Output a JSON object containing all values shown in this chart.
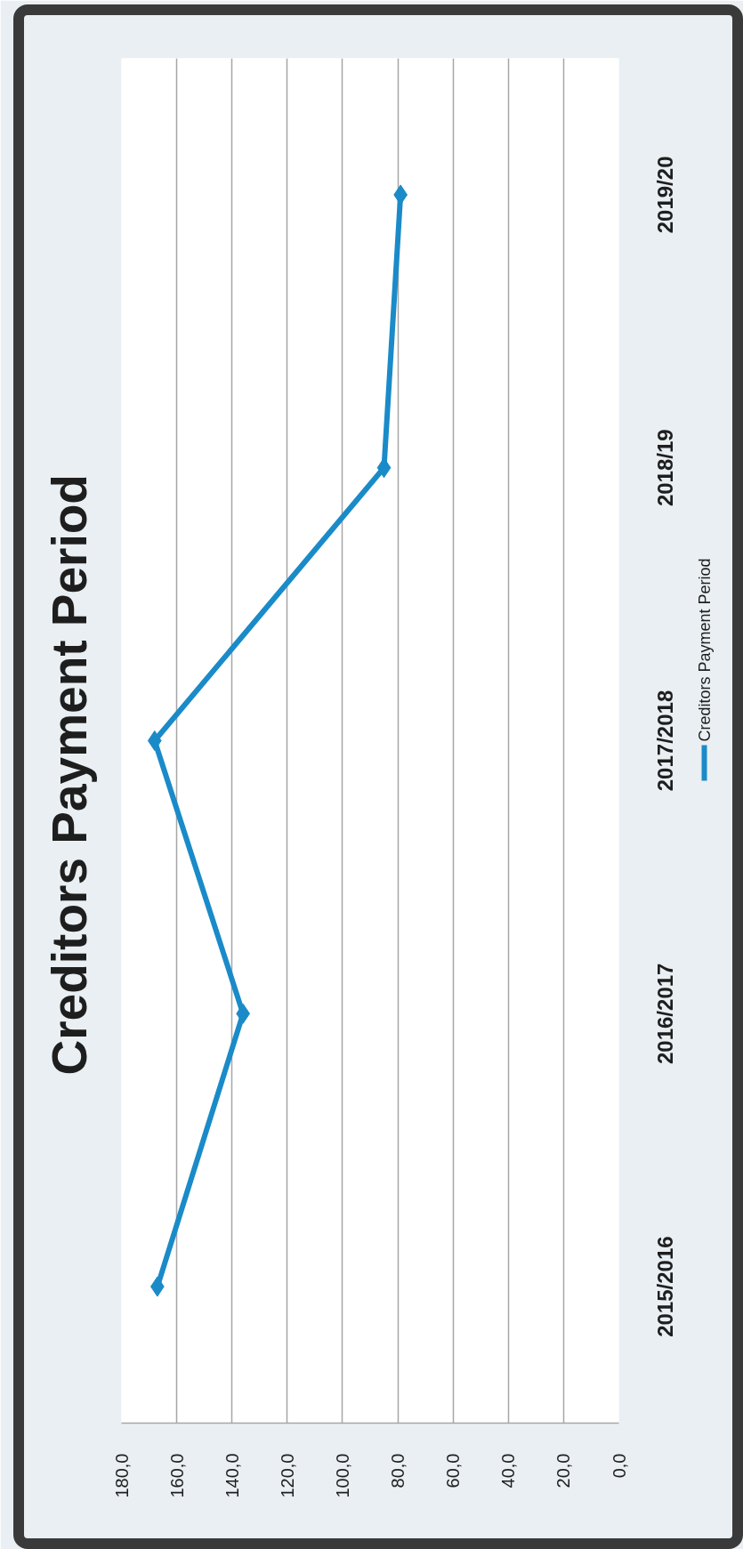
{
  "chart_data": {
    "type": "line",
    "orientation": "horizontal",
    "title": "Creditors Payment Period",
    "categories": [
      "2019/20",
      "2018/19",
      "2017/2018",
      "2016/2017",
      "2015/2016"
    ],
    "series": [
      {
        "name": "Creditors Payment Period",
        "color": "#1a8bc8",
        "values": [
          79,
          85,
          168,
          136,
          167
        ]
      }
    ],
    "xlim": [
      180,
      0
    ],
    "xticks": [
      {
        "value": 180,
        "label": "180,0"
      },
      {
        "value": 160,
        "label": "160,0"
      },
      {
        "value": 140,
        "label": "140,0"
      },
      {
        "value": 120,
        "label": "120,0"
      },
      {
        "value": 100,
        "label": "100,0"
      },
      {
        "value": 80,
        "label": "80,0"
      },
      {
        "value": 60,
        "label": "60,0"
      },
      {
        "value": 40,
        "label": "40,0"
      },
      {
        "value": 20,
        "label": "20,0"
      },
      {
        "value": 0,
        "label": "0,0"
      }
    ],
    "grid": "x",
    "legend": "right",
    "marker": "diamond",
    "line_style": "solid"
  }
}
